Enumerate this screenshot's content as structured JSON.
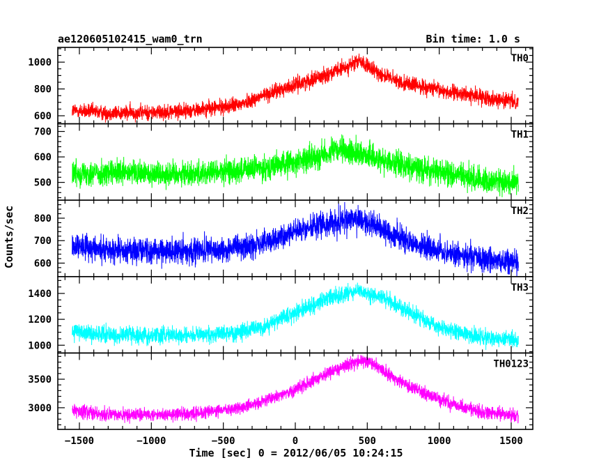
{
  "header": {
    "left": "ae120605102415_wam0_trn",
    "right": "Bin time: 1.0 s"
  },
  "chart_data": {
    "type": "line",
    "title": "ae120605102415_wam0_trn",
    "subtitle": "Bin time: 1.0 s",
    "xlabel": "Time [sec] 0 = 2012/06/05 10:24:15",
    "ylabel": "Counts/sec",
    "xlim": [
      -1650,
      1650
    ],
    "xticks": [
      -1500,
      -1000,
      -500,
      0,
      500,
      1000,
      1500
    ],
    "x_range_data": [
      -1550,
      1550
    ],
    "bin_time_s": 1.0,
    "grid": false,
    "panels": [
      {
        "name": "TH0",
        "color": "#ff0000",
        "ylim": [
          540,
          1110
        ],
        "yticks": [
          600,
          800,
          1000
        ],
        "trend": [
          [
            -1550,
            640
          ],
          [
            -1300,
            620
          ],
          [
            -1000,
            625
          ],
          [
            -700,
            640
          ],
          [
            -400,
            680
          ],
          [
            -200,
            760
          ],
          [
            0,
            830
          ],
          [
            200,
            900
          ],
          [
            350,
            960
          ],
          [
            450,
            1010
          ],
          [
            520,
            950
          ],
          [
            700,
            860
          ],
          [
            1000,
            790
          ],
          [
            1300,
            740
          ],
          [
            1550,
            700
          ]
        ],
        "noise_amplitude": 40
      },
      {
        "name": "TH1",
        "color": "#00ff00",
        "ylim": [
          430,
          730
        ],
        "yticks": [
          500,
          600,
          700
        ],
        "trend": [
          [
            -1550,
            540
          ],
          [
            -1300,
            535
          ],
          [
            -1000,
            535
          ],
          [
            -700,
            535
          ],
          [
            -400,
            545
          ],
          [
            -200,
            560
          ],
          [
            0,
            580
          ],
          [
            200,
            610
          ],
          [
            300,
            625
          ],
          [
            450,
            615
          ],
          [
            600,
            590
          ],
          [
            800,
            560
          ],
          [
            1000,
            540
          ],
          [
            1300,
            510
          ],
          [
            1550,
            495
          ]
        ],
        "noise_amplitude": 35
      },
      {
        "name": "TH2",
        "color": "#0000ff",
        "ylim": [
          540,
          880
        ],
        "yticks": [
          600,
          700,
          800
        ],
        "trend": [
          [
            -1550,
            680
          ],
          [
            -1300,
            660
          ],
          [
            -1000,
            655
          ],
          [
            -700,
            655
          ],
          [
            -400,
            665
          ],
          [
            -200,
            690
          ],
          [
            0,
            740
          ],
          [
            200,
            775
          ],
          [
            400,
            795
          ],
          [
            550,
            770
          ],
          [
            700,
            720
          ],
          [
            900,
            670
          ],
          [
            1100,
            640
          ],
          [
            1300,
            620
          ],
          [
            1550,
            600
          ]
        ],
        "noise_amplitude": 40
      },
      {
        "name": "TH3",
        "color": "#00ffff",
        "ylim": [
          940,
          1530
        ],
        "yticks": [
          1000,
          1200,
          1400
        ],
        "trend": [
          [
            -1550,
            1110
          ],
          [
            -1300,
            1080
          ],
          [
            -1000,
            1075
          ],
          [
            -700,
            1080
          ],
          [
            -400,
            1100
          ],
          [
            -200,
            1150
          ],
          [
            0,
            1250
          ],
          [
            200,
            1350
          ],
          [
            450,
            1420
          ],
          [
            600,
            1370
          ],
          [
            800,
            1250
          ],
          [
            1000,
            1140
          ],
          [
            1200,
            1080
          ],
          [
            1400,
            1050
          ],
          [
            1550,
            1040
          ]
        ],
        "noise_amplitude": 45
      },
      {
        "name": "TH0123",
        "color": "#ff00ff",
        "ylim": [
          2620,
          3960
        ],
        "yticks": [
          3000,
          3500
        ],
        "trend": [
          [
            -1550,
            2940
          ],
          [
            -1300,
            2880
          ],
          [
            -1000,
            2870
          ],
          [
            -700,
            2900
          ],
          [
            -400,
            2980
          ],
          [
            -200,
            3130
          ],
          [
            0,
            3330
          ],
          [
            200,
            3570
          ],
          [
            350,
            3750
          ],
          [
            450,
            3830
          ],
          [
            550,
            3750
          ],
          [
            700,
            3500
          ],
          [
            900,
            3250
          ],
          [
            1100,
            3050
          ],
          [
            1300,
            2920
          ],
          [
            1550,
            2850
          ]
        ],
        "noise_amplitude": 80
      }
    ]
  }
}
